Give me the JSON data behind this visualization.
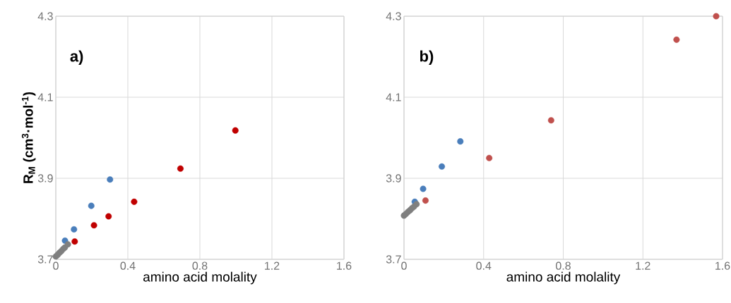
{
  "chart_data": [
    {
      "type": "scatter",
      "xlabel": "amino acid molality",
      "ylabel": "**R$_{M}$ (cm$^{3}$·mol$^{-1}$)**",
      "annotations": [
        "**a)**"
      ],
      "xlim": [
        0,
        1.6
      ],
      "ylim": [
        3.7,
        4.3
      ],
      "xticks": [
        0,
        0.4,
        0.8,
        1.2,
        1.6
      ],
      "yticks": [
        3.7,
        3.9,
        4.1,
        4.3
      ],
      "grid": true,
      "marker": "circle",
      "series": [
        {
          "color": "#c00000",
          "x": [
            0.105,
            0.212,
            0.293,
            0.435,
            0.692,
            0.997
          ],
          "values": [
            3.744,
            3.784,
            3.806,
            3.842,
            3.924,
            4.018
          ]
        },
        {
          "color": "#4a7ebb",
          "x": [
            0.051,
            0.101,
            0.197,
            0.301
          ],
          "values": [
            3.746,
            3.774,
            3.832,
            3.897
          ]
        },
        {
          "color": "#7f7f7f",
          "x": [
            0,
            0.01,
            0.02,
            0.03,
            0.04,
            0.05,
            0.06,
            0.067
          ],
          "values": [
            3.707,
            3.711,
            3.716,
            3.72,
            3.725,
            3.729,
            null,
            3.737
          ]
        }
      ]
    },
    {
      "type": "scatter",
      "xlabel": "amino acid molality",
      "annotations": [
        "**b)**"
      ],
      "xlim": [
        0,
        1.6
      ],
      "ylim": [
        3.7,
        4.3
      ],
      "xticks": [
        0,
        0.4,
        0.8,
        1.2,
        1.6
      ],
      "yticks": [
        3.7,
        3.9,
        4.1,
        4.3
      ],
      "grid": true,
      "marker": "circle",
      "series": [
        {
          "color": "#c0504d",
          "x": [
            0.108,
            0.428,
            0.739,
            1.369,
            1.568
          ],
          "values": [
            3.845,
            3.95,
            4.043,
            4.242,
            4.3
          ]
        },
        {
          "color": "#4a7ebb",
          "x": [
            0.054,
            0.096,
            0.19,
            0.283
          ],
          "values": [
            3.842,
            3.874,
            3.929,
            3.991
          ]
        },
        {
          "color": "#7f7f7f",
          "x": [
            0,
            0.01,
            0.02,
            0.03,
            0.04,
            0.05,
            0.063
          ],
          "values": [
            3.808,
            3.812,
            3.817,
            3.821,
            3.826,
            3.83,
            3.836
          ]
        }
      ]
    }
  ]
}
